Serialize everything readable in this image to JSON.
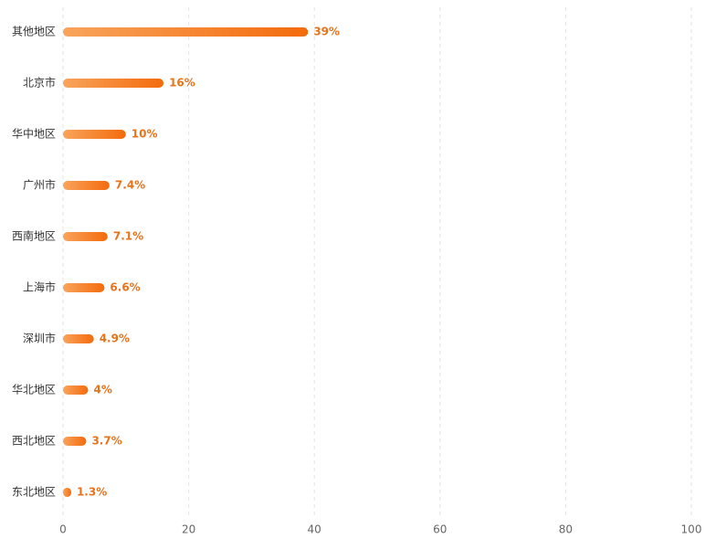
{
  "chart_data": {
    "type": "bar",
    "orientation": "horizontal",
    "categories": [
      "其他地区",
      "北京市",
      "华中地区",
      "广州市",
      "西南地区",
      "上海市",
      "深圳市",
      "华北地区",
      "西北地区",
      "东北地区"
    ],
    "values": [
      39,
      16,
      10,
      7.4,
      7.1,
      6.6,
      4.9,
      4,
      3.7,
      1.3
    ],
    "value_labels": [
      "39%",
      "16%",
      "10%",
      "7.4%",
      "7.1%",
      "6.6%",
      "4.9%",
      "4%",
      "3.7%",
      "1.3%"
    ],
    "color": "#f46b0c",
    "xlim": [
      0,
      100
    ],
    "xticks": [
      0,
      20,
      40,
      60,
      80,
      100
    ],
    "grid": true
  }
}
